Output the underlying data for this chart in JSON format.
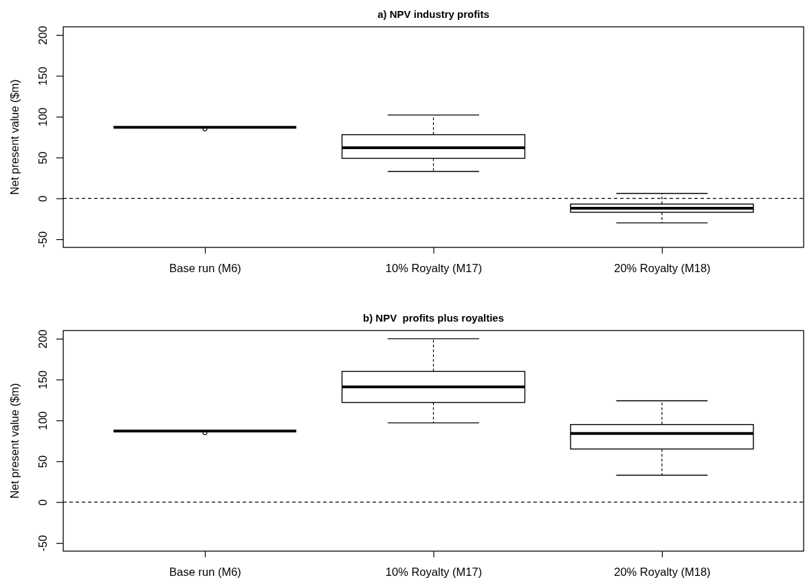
{
  "chart_data": [
    {
      "type": "box",
      "title": "a) NPV industry profits",
      "ylabel": "Net present value ($m)",
      "categories": [
        "Base run (M6)",
        "10% Royalty (M17)",
        "20% Royalty (M18)"
      ],
      "boxes": [
        {
          "low": 87,
          "q1": 87,
          "median": 87,
          "q3": 87,
          "high": 87,
          "outliers": [
            85
          ]
        },
        {
          "low": 33,
          "q1": 49,
          "median": 62,
          "q3": 78,
          "high": 102
        },
        {
          "low": -30,
          "q1": -17,
          "median": -12,
          "q3": -7,
          "high": 6
        }
      ],
      "ylim": [
        -60,
        210
      ],
      "yticks": [
        -50,
        0,
        50,
        100,
        150,
        200
      ],
      "ref_lines": [
        {
          "axis": "y",
          "value": 0,
          "line_style": "dashed"
        }
      ]
    },
    {
      "type": "box",
      "title": "b) NPV  profits plus royalties",
      "ylabel": "Net present value ($m)",
      "categories": [
        "Base run (M6)",
        "10% Royalty (M17)",
        "20% Royalty (M18)"
      ],
      "boxes": [
        {
          "low": 87,
          "q1": 87,
          "median": 87,
          "q3": 87,
          "high": 87,
          "outliers": [
            85
          ]
        },
        {
          "low": 97,
          "q1": 122,
          "median": 141,
          "q3": 160,
          "high": 200
        },
        {
          "low": 33,
          "q1": 65,
          "median": 84,
          "q3": 95,
          "high": 124
        }
      ],
      "ylim": [
        -60,
        210
      ],
      "yticks": [
        -50,
        0,
        50,
        100,
        150,
        200
      ],
      "ref_lines": [
        {
          "axis": "y",
          "value": 0,
          "line_style": "dashed"
        }
      ]
    }
  ]
}
